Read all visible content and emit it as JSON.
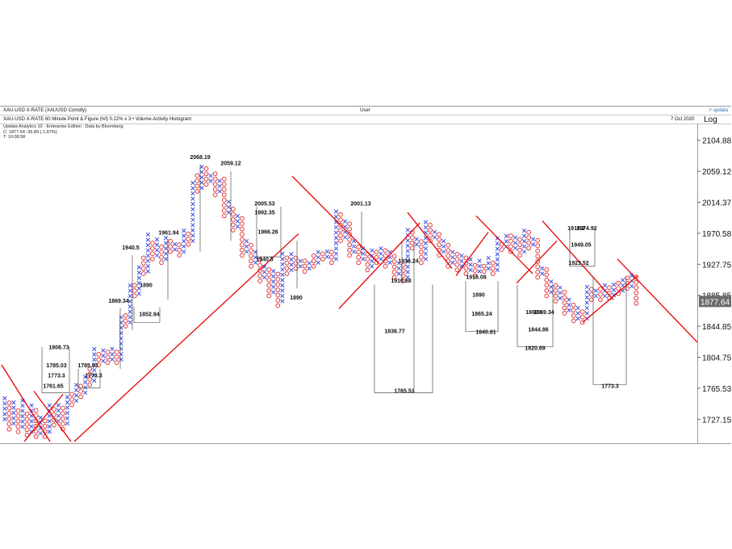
{
  "header": {
    "title": "XAU-USD X-RATE (XAUUSD Comdty)",
    "center": "User",
    "brand": "↗ updata"
  },
  "subheader": {
    "chart_title": "XAU-USD X-RATE 60 Minute Point & Figure (h/l) 0.22% x 3 • Volume Activity Histogram",
    "date": "7 Oct 2020",
    "scale": "Log"
  },
  "info": {
    "line1": "Updata Analytics 10 - Enterprise Edition : Data by Bloomberg",
    "line2": "C: 1877.64  -35.89 (-1.87%)",
    "line3": "T: 10:08:58"
  },
  "colors": {
    "x_color": "#3a4fe0",
    "o_color": "#e23a3a",
    "trend_color": "#e60000",
    "target_color": "#333333",
    "last_price_bg": "#6b6b6b"
  },
  "chart_data": {
    "type": "point_and_figure",
    "title": "XAU-USD X-RATE 60 Minute Point & Figure (h/l) 0.22% x 3",
    "box_size_pct": 0.22,
    "reversal": 3,
    "scale": "log",
    "ylim": [
      1700,
      2130
    ],
    "y_ticks": [
      "2104.88",
      "2059.12",
      "2014.37",
      "1970.58",
      "1927.75",
      "1885.85",
      "1844.85",
      "1804.75",
      "1765.53",
      "1727.15"
    ],
    "last_price": "1877.64",
    "columns": [
      {
        "t": "X",
        "lo": 1727.15,
        "hi": 1755
      },
      {
        "t": "O",
        "lo": 1715,
        "hi": 1750
      },
      {
        "t": "X",
        "lo": 1722,
        "hi": 1748
      },
      {
        "t": "O",
        "lo": 1712,
        "hi": 1742
      },
      {
        "t": "X",
        "lo": 1718,
        "hi": 1752
      },
      {
        "t": "O",
        "lo": 1708,
        "hi": 1738
      },
      {
        "t": "X",
        "lo": 1712,
        "hi": 1750
      },
      {
        "t": "O",
        "lo": 1706,
        "hi": 1740
      },
      {
        "t": "X",
        "lo": 1710,
        "hi": 1735
      },
      {
        "t": "O",
        "lo": 1706,
        "hi": 1728
      },
      {
        "t": "X",
        "lo": 1712,
        "hi": 1748
      },
      {
        "t": "O",
        "lo": 1720,
        "hi": 1745
      },
      {
        "t": "X",
        "lo": 1725,
        "hi": 1748
      },
      {
        "t": "O",
        "lo": 1715,
        "hi": 1742
      },
      {
        "t": "X",
        "lo": 1722,
        "hi": 1760
      },
      {
        "t": "O",
        "lo": 1745,
        "hi": 1762
      },
      {
        "t": "X",
        "lo": 1750,
        "hi": 1770
      },
      {
        "t": "O",
        "lo": 1755,
        "hi": 1772
      },
      {
        "t": "X",
        "lo": 1760,
        "hi": 1785
      },
      {
        "t": "O",
        "lo": 1770,
        "hi": 1790
      },
      {
        "t": "X",
        "lo": 1775,
        "hi": 1820
      },
      {
        "t": "O",
        "lo": 1795,
        "hi": 1815
      },
      {
        "t": "X",
        "lo": 1800,
        "hi": 1816
      },
      {
        "t": "O",
        "lo": 1798,
        "hi": 1812
      },
      {
        "t": "X",
        "lo": 1802,
        "hi": 1818
      },
      {
        "t": "O",
        "lo": 1798,
        "hi": 1812
      },
      {
        "t": "X",
        "lo": 1802,
        "hi": 1862
      },
      {
        "t": "O",
        "lo": 1845,
        "hi": 1860
      },
      {
        "t": "X",
        "lo": 1850,
        "hi": 1905
      },
      {
        "t": "O",
        "lo": 1885,
        "hi": 1902
      },
      {
        "t": "X",
        "lo": 1888,
        "hi": 1930
      },
      {
        "t": "O",
        "lo": 1915,
        "hi": 1940
      },
      {
        "t": "X",
        "lo": 1918,
        "hi": 1975
      },
      {
        "t": "O",
        "lo": 1935,
        "hi": 1958
      },
      {
        "t": "X",
        "lo": 1940,
        "hi": 1962
      },
      {
        "t": "O",
        "lo": 1930,
        "hi": 1955
      },
      {
        "t": "X",
        "lo": 1935,
        "hi": 1970
      },
      {
        "t": "O",
        "lo": 1945,
        "hi": 1965
      },
      {
        "t": "X",
        "lo": 1948,
        "hi": 1962
      },
      {
        "t": "O",
        "lo": 1940,
        "hi": 1958
      },
      {
        "t": "X",
        "lo": 1945,
        "hi": 1975
      },
      {
        "t": "O",
        "lo": 1955,
        "hi": 1972
      },
      {
        "t": "X",
        "lo": 1960,
        "hi": 2045
      },
      {
        "t": "O",
        "lo": 2030,
        "hi": 2060
      },
      {
        "t": "X",
        "lo": 2035,
        "hi": 2068
      },
      {
        "t": "O",
        "lo": 2040,
        "hi": 2065
      },
      {
        "t": "X",
        "lo": 2045,
        "hi": 2060
      },
      {
        "t": "O",
        "lo": 2025,
        "hi": 2058
      },
      {
        "t": "X",
        "lo": 2030,
        "hi": 2050
      },
      {
        "t": "O",
        "lo": 1995,
        "hi": 2048
      },
      {
        "t": "X",
        "lo": 2000,
        "hi": 2015
      },
      {
        "t": "O",
        "lo": 1975,
        "hi": 2012
      },
      {
        "t": "X",
        "lo": 1980,
        "hi": 1995
      },
      {
        "t": "O",
        "lo": 1940,
        "hi": 1992
      },
      {
        "t": "X",
        "lo": 1945,
        "hi": 1960
      },
      {
        "t": "O",
        "lo": 1925,
        "hi": 1955
      },
      {
        "t": "X",
        "lo": 1930,
        "hi": 1945
      },
      {
        "t": "O",
        "lo": 1905,
        "hi": 1940
      },
      {
        "t": "X",
        "lo": 1910,
        "hi": 1928
      },
      {
        "t": "O",
        "lo": 1885,
        "hi": 1925
      },
      {
        "t": "X",
        "lo": 1890,
        "hi": 1920
      },
      {
        "t": "O",
        "lo": 1872,
        "hi": 1915
      },
      {
        "t": "X",
        "lo": 1878,
        "hi": 1945
      },
      {
        "t": "O",
        "lo": 1915,
        "hi": 1940
      },
      {
        "t": "X",
        "lo": 1920,
        "hi": 1945
      },
      {
        "t": "O",
        "lo": 1922,
        "hi": 1940
      },
      {
        "t": "X",
        "lo": 1925,
        "hi": 1938
      },
      {
        "t": "O",
        "lo": 1918,
        "hi": 1935
      },
      {
        "t": "X",
        "lo": 1922,
        "hi": 1936
      },
      {
        "t": "O",
        "lo": 1925,
        "hi": 1940
      },
      {
        "t": "X",
        "lo": 1930,
        "hi": 1945
      },
      {
        "t": "O",
        "lo": 1935,
        "hi": 1948
      },
      {
        "t": "X",
        "lo": 1938,
        "hi": 1948
      },
      {
        "t": "O",
        "lo": 1930,
        "hi": 1945
      },
      {
        "t": "X",
        "lo": 1935,
        "hi": 2006
      },
      {
        "t": "O",
        "lo": 1960,
        "hi": 2002
      },
      {
        "t": "X",
        "lo": 1965,
        "hi": 1990
      },
      {
        "t": "O",
        "lo": 1940,
        "hi": 1985
      },
      {
        "t": "X",
        "lo": 1945,
        "hi": 1962
      },
      {
        "t": "O",
        "lo": 1930,
        "hi": 1958
      },
      {
        "t": "X",
        "lo": 1935,
        "hi": 1950
      },
      {
        "t": "O",
        "lo": 1920,
        "hi": 1948
      },
      {
        "t": "X",
        "lo": 1925,
        "hi": 1950
      },
      {
        "t": "O",
        "lo": 1930,
        "hi": 1948
      },
      {
        "t": "X",
        "lo": 1935,
        "hi": 1952
      },
      {
        "t": "O",
        "lo": 1925,
        "hi": 1948
      },
      {
        "t": "X",
        "lo": 1930,
        "hi": 1945
      },
      {
        "t": "O",
        "lo": 1910,
        "hi": 1942
      },
      {
        "t": "X",
        "lo": 1915,
        "hi": 1930
      },
      {
        "t": "O",
        "lo": 1905,
        "hi": 1928
      },
      {
        "t": "X",
        "lo": 1910,
        "hi": 1978
      },
      {
        "t": "O",
        "lo": 1950,
        "hi": 1975
      },
      {
        "t": "X",
        "lo": 1955,
        "hi": 1968
      },
      {
        "t": "O",
        "lo": 1930,
        "hi": 1965
      },
      {
        "t": "X",
        "lo": 1935,
        "hi": 1988
      },
      {
        "t": "O",
        "lo": 1960,
        "hi": 1985
      },
      {
        "t": "X",
        "lo": 1965,
        "hi": 1975
      },
      {
        "t": "O",
        "lo": 1940,
        "hi": 1972
      },
      {
        "t": "X",
        "lo": 1945,
        "hi": 1960
      },
      {
        "t": "O",
        "lo": 1925,
        "hi": 1958
      },
      {
        "t": "X",
        "lo": 1930,
        "hi": 1948
      },
      {
        "t": "O",
        "lo": 1920,
        "hi": 1945
      },
      {
        "t": "X",
        "lo": 1925,
        "hi": 1942
      },
      {
        "t": "O",
        "lo": 1915,
        "hi": 1940
      },
      {
        "t": "X",
        "lo": 1920,
        "hi": 1935
      },
      {
        "t": "O",
        "lo": 1912,
        "hi": 1932
      },
      {
        "t": "X",
        "lo": 1918,
        "hi": 1935
      },
      {
        "t": "O",
        "lo": 1918,
        "hi": 1932
      },
      {
        "t": "X",
        "lo": 1922,
        "hi": 1938
      },
      {
        "t": "O",
        "lo": 1915,
        "hi": 1935
      },
      {
        "t": "X",
        "lo": 1920,
        "hi": 1965
      },
      {
        "t": "O",
        "lo": 1948,
        "hi": 1962
      },
      {
        "t": "X",
        "lo": 1952,
        "hi": 1970
      },
      {
        "t": "O",
        "lo": 1945,
        "hi": 1968
      },
      {
        "t": "X",
        "lo": 1950,
        "hi": 1965
      },
      {
        "t": "O",
        "lo": 1940,
        "hi": 1962
      },
      {
        "t": "X",
        "lo": 1945,
        "hi": 1975
      },
      {
        "t": "O",
        "lo": 1950,
        "hi": 1972
      },
      {
        "t": "X",
        "lo": 1955,
        "hi": 1968
      },
      {
        "t": "O",
        "lo": 1910,
        "hi": 1965
      },
      {
        "t": "X",
        "lo": 1915,
        "hi": 1928
      },
      {
        "t": "O",
        "lo": 1885,
        "hi": 1925
      },
      {
        "t": "X",
        "lo": 1890,
        "hi": 1905
      },
      {
        "t": "O",
        "lo": 1878,
        "hi": 1902
      },
      {
        "t": "X",
        "lo": 1882,
        "hi": 1900
      },
      {
        "t": "O",
        "lo": 1862,
        "hi": 1895
      },
      {
        "t": "X",
        "lo": 1866,
        "hi": 1880
      },
      {
        "t": "O",
        "lo": 1852,
        "hi": 1878
      },
      {
        "t": "X",
        "lo": 1855,
        "hi": 1870
      },
      {
        "t": "O",
        "lo": 1850,
        "hi": 1866
      },
      {
        "t": "X",
        "lo": 1855,
        "hi": 1900
      },
      {
        "t": "O",
        "lo": 1880,
        "hi": 1898
      },
      {
        "t": "X",
        "lo": 1885,
        "hi": 1898
      },
      {
        "t": "O",
        "lo": 1880,
        "hi": 1895
      },
      {
        "t": "X",
        "lo": 1885,
        "hi": 1900
      },
      {
        "t": "O",
        "lo": 1882,
        "hi": 1898
      },
      {
        "t": "X",
        "lo": 1886,
        "hi": 1906
      },
      {
        "t": "O",
        "lo": 1888,
        "hi": 1904
      },
      {
        "t": "X",
        "lo": 1892,
        "hi": 1912
      },
      {
        "t": "O",
        "lo": 1895,
        "hi": 1910
      },
      {
        "t": "X",
        "lo": 1898,
        "hi": 1916
      },
      {
        "t": "O",
        "lo": 1875,
        "hi": 1913
      }
    ],
    "trend_lines": [
      {
        "x0": 2,
        "y0": 1795,
        "x1": 62,
        "y1": 1700
      },
      {
        "x0": 30,
        "y0": 1700,
        "x1": 78,
        "y1": 1758
      },
      {
        "x0": 42,
        "y0": 1762,
        "x1": 88,
        "y1": 1700
      },
      {
        "x0": 92,
        "y0": 1700,
        "x1": 370,
        "y1": 1970
      },
      {
        "x0": 362,
        "y0": 2052,
        "x1": 470,
        "y1": 1928
      },
      {
        "x0": 420,
        "y0": 1868,
        "x1": 520,
        "y1": 1985
      },
      {
        "x0": 505,
        "y0": 2000,
        "x1": 560,
        "y1": 1922
      },
      {
        "x0": 565,
        "y0": 1912,
        "x1": 605,
        "y1": 1972
      },
      {
        "x0": 590,
        "y0": 1995,
        "x1": 660,
        "y1": 1915
      },
      {
        "x0": 640,
        "y0": 1902,
        "x1": 690,
        "y1": 1960
      },
      {
        "x0": 672,
        "y0": 1988,
        "x1": 760,
        "y1": 1880
      },
      {
        "x0": 722,
        "y0": 1850,
        "x1": 790,
        "y1": 1912
      },
      {
        "x0": 765,
        "y0": 1935,
        "x1": 866,
        "y1": 1822
      }
    ],
    "price_labels": [
      {
        "text": "1808.73",
        "x": 73,
        "y": 1815
      },
      {
        "text": "1785.03",
        "x": 70,
        "y": 1792
      },
      {
        "text": "1773.3",
        "x": 70,
        "y": 1779
      },
      {
        "text": "1761.65",
        "x": 66,
        "y": 1766
      },
      {
        "text": "1785.03",
        "x": 109,
        "y": 1792
      },
      {
        "text": "1773.3",
        "x": 116,
        "y": 1779
      },
      {
        "text": "1869.34",
        "x": 147,
        "y": 1876
      },
      {
        "text": "1940.5",
        "x": 162,
        "y": 1948
      },
      {
        "text": "1890",
        "x": 181,
        "y": 1897
      },
      {
        "text": "1852.94",
        "x": 185,
        "y": 1858
      },
      {
        "text": "1961.94",
        "x": 209,
        "y": 1969
      },
      {
        "text": "2068.19",
        "x": 248,
        "y": 2077
      },
      {
        "text": "2059.12",
        "x": 286,
        "y": 2068
      },
      {
        "text": "2005.53",
        "x": 328,
        "y": 2010
      },
      {
        "text": "1992.35",
        "x": 328,
        "y": 1997
      },
      {
        "text": "1966.26",
        "x": 332,
        "y": 1970
      },
      {
        "text": "1940.5",
        "x": 328,
        "y": 1932
      },
      {
        "text": "1890",
        "x": 367,
        "y": 1880
      },
      {
        "text": "2001.13",
        "x": 447,
        "y": 2010
      },
      {
        "text": "1936.24",
        "x": 506,
        "y": 1930
      },
      {
        "text": "1910.88",
        "x": 497,
        "y": 1903
      },
      {
        "text": "1836.77",
        "x": 489,
        "y": 1836
      },
      {
        "text": "1765.53",
        "x": 501,
        "y": 1760
      },
      {
        "text": "1915.08",
        "x": 590,
        "y": 1908
      },
      {
        "text": "1890",
        "x": 593,
        "y": 1884
      },
      {
        "text": "1865.24",
        "x": 597,
        "y": 1859
      },
      {
        "text": "1840.81",
        "x": 602,
        "y": 1835
      },
      {
        "text": "1869.6",
        "x": 662,
        "y": 1861
      },
      {
        "text": "1869.34",
        "x": 674,
        "y": 1861
      },
      {
        "text": "1844.86",
        "x": 667,
        "y": 1838
      },
      {
        "text": "1820.69",
        "x": 663,
        "y": 1814
      },
      {
        "text": "1910.2",
        "x": 714,
        "y": 1975
      },
      {
        "text": "1974.92",
        "x": 727,
        "y": 1975
      },
      {
        "text": "1949.05",
        "x": 720,
        "y": 1952
      },
      {
        "text": "1923.52",
        "x": 717,
        "y": 1927
      },
      {
        "text": "1773.3",
        "x": 756,
        "y": 1766
      }
    ]
  }
}
